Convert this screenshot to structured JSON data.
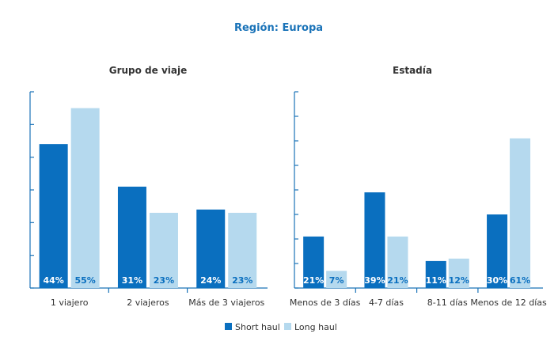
{
  "region_title": "Región: Europa",
  "colors": {
    "short_haul": "#0a6fbf",
    "long_haul": "#b5d9ee",
    "axis": "#1a73b8",
    "title": "#1a73b8"
  },
  "legend": [
    {
      "key": "short_haul",
      "label": "Short haul"
    },
    {
      "key": "long_haul",
      "label": "Long haul"
    }
  ],
  "chart_data": [
    {
      "type": "bar",
      "title": "Grupo de viaje",
      "categories": [
        "1 viajero",
        "2 viajeros",
        "Más de 3 viajeros"
      ],
      "series": [
        {
          "name": "Short haul",
          "values": [
            44,
            31,
            24
          ],
          "labels": [
            "44%",
            "31%",
            "24%"
          ]
        },
        {
          "name": "Long haul",
          "values": [
            55,
            23,
            23
          ],
          "labels": [
            "55%",
            "23%",
            "23%"
          ]
        }
      ],
      "ylim": [
        0,
        60
      ],
      "yticks": [
        0,
        10,
        20,
        30,
        40,
        50,
        60
      ],
      "legend_position": "bottom",
      "grid": false
    },
    {
      "type": "bar",
      "title": "Estadía",
      "categories": [
        "Menos de 3 días",
        "4-7 días",
        "8-11 días",
        "Menos de 12 días"
      ],
      "series": [
        {
          "name": "Short haul",
          "values": [
            21,
            39,
            11,
            30
          ],
          "labels": [
            "21%",
            "39%",
            "11%",
            "30%"
          ]
        },
        {
          "name": "Long haul",
          "values": [
            7,
            21,
            12,
            61
          ],
          "labels": [
            "7%",
            "21%",
            "12%",
            "61%"
          ]
        }
      ],
      "ylim": [
        0,
        80
      ],
      "yticks": [
        0,
        10,
        20,
        30,
        40,
        50,
        60,
        70,
        80
      ],
      "legend_position": "bottom",
      "grid": false
    }
  ]
}
